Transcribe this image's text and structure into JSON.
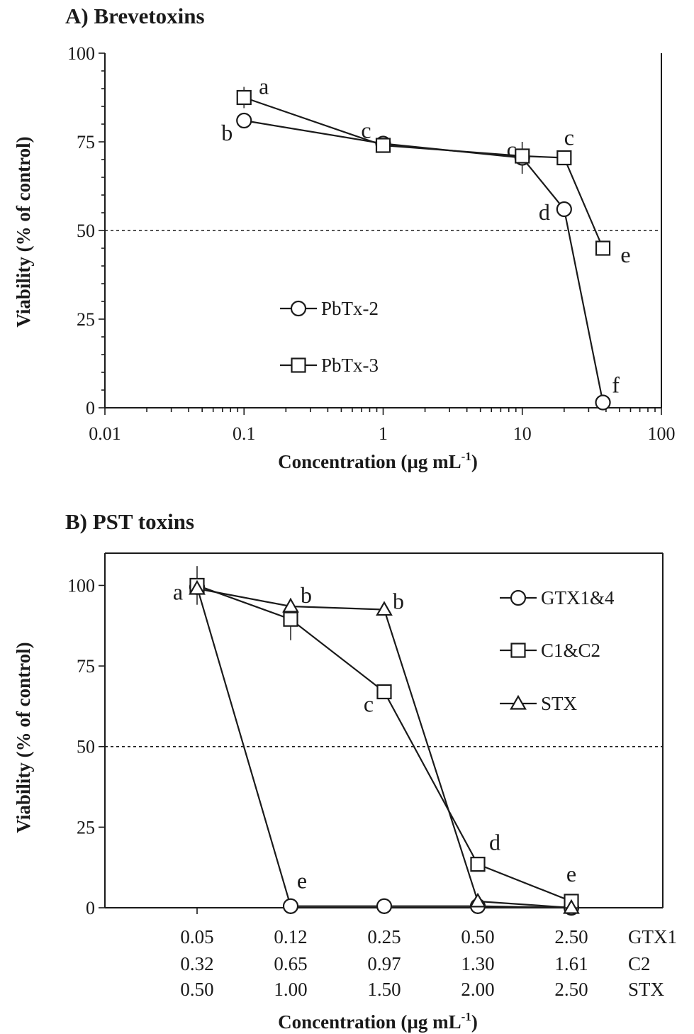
{
  "chart_data": [
    {
      "type": "line",
      "title": "A) Brevetoxins",
      "xlabel_main": "Concentration (µg mL",
      "xlabel_sup": "-1",
      "xlabel_end": ")",
      "ylabel": "Viability (% of control)",
      "xscale": "log",
      "xlim": [
        0.01,
        100
      ],
      "ylim": [
        0,
        100
      ],
      "xticks": [
        0.01,
        0.1,
        1,
        10,
        100
      ],
      "xtick_labels": [
        "0.01",
        "0.1",
        "1",
        "10",
        "100"
      ],
      "yticks": [
        0,
        25,
        50,
        75,
        100
      ],
      "ytick_labels": [
        "0",
        "25",
        "50",
        "75",
        "100"
      ],
      "reference_line": 50,
      "legend_position": "center-left",
      "series": [
        {
          "name": "PbTx-2",
          "marker": "circle",
          "x": [
            0.1,
            1,
            10,
            20,
            38
          ],
          "y": [
            81,
            74.5,
            70.5,
            56,
            1.5
          ],
          "err": [
            0,
            0,
            4.5,
            0,
            0
          ],
          "letters": [
            "b",
            "c",
            "c",
            "d",
            "f"
          ]
        },
        {
          "name": "PbTx-3",
          "marker": "square",
          "x": [
            0.1,
            1,
            10,
            20,
            38
          ],
          "y": [
            87.5,
            74,
            71,
            70.5,
            45
          ],
          "err": [
            3,
            1.5,
            0,
            0,
            0
          ],
          "letters": [
            "a",
            "",
            "",
            "c",
            "e"
          ]
        }
      ]
    },
    {
      "type": "line",
      "title": "B) PST toxins",
      "xlabel_main": "Concentration (µg mL",
      "xlabel_sup": "-1",
      "xlabel_end": ")",
      "ylabel": "Viability (% of control)",
      "ylim": [
        0,
        110
      ],
      "yticks": [
        0,
        25,
        50,
        75,
        100
      ],
      "ytick_labels": [
        "0",
        "25",
        "50",
        "75",
        "100"
      ],
      "reference_line": 50,
      "legend_position": "top-right",
      "category_rows": [
        {
          "name": "GTX1",
          "values": [
            "0.05",
            "0.12",
            "0.25",
            "0.50",
            "2.50"
          ]
        },
        {
          "name": "C2",
          "values": [
            "0.32",
            "0.65",
            "0.97",
            "1.30",
            "1.61"
          ]
        },
        {
          "name": "STX",
          "values": [
            "0.50",
            "1.00",
            "1.50",
            "2.00",
            "2.50"
          ]
        }
      ],
      "series": [
        {
          "name": "GTX1&4",
          "marker": "circle",
          "y": [
            99.5,
            0.5,
            0.5,
            0.5,
            0
          ],
          "err": [
            0,
            0,
            0,
            0,
            0
          ]
        },
        {
          "name": "C1&C2",
          "marker": "square",
          "y": [
            100,
            89.5,
            67,
            13.5,
            2
          ],
          "err": [
            6,
            6.5,
            0,
            0,
            0
          ]
        },
        {
          "name": "STX",
          "marker": "triangle",
          "y": [
            99,
            93.5,
            92.5,
            2,
            0
          ],
          "err": [
            0,
            0,
            0,
            0,
            0
          ]
        }
      ],
      "letters": [
        {
          "label": "a",
          "index": 0,
          "y": 100
        },
        {
          "label": "b",
          "index": 1,
          "y": 93.5
        },
        {
          "label": "b",
          "index": 2,
          "y": 92.5
        },
        {
          "label": "c",
          "index": 2,
          "y": 67
        },
        {
          "label": "d",
          "index": 3,
          "y": 13.5
        },
        {
          "label": "e",
          "index": 1,
          "y": 0.5
        },
        {
          "label": "e",
          "index": 4,
          "y": 2
        }
      ]
    }
  ]
}
